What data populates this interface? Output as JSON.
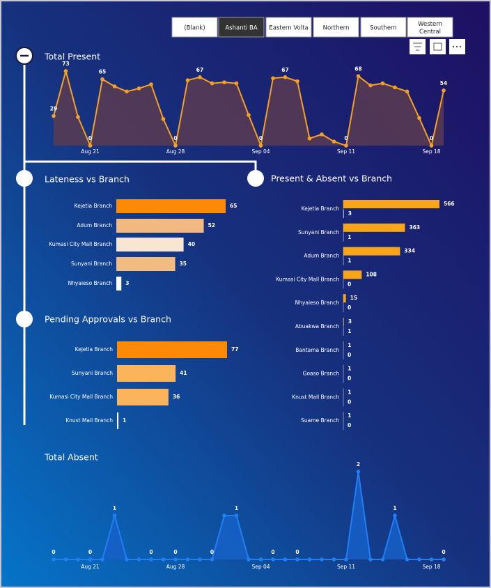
{
  "slicer": {
    "options": [
      "(Blank)",
      "Ashanti BA",
      "Eastern Volta",
      "Northern",
      "Southern",
      "Western Central"
    ],
    "selected": "Ashanti BA"
  },
  "chart_data": [
    {
      "type": "area",
      "title": "Total Present",
      "color": "#f7a11f",
      "fill": "#5b3b52",
      "categories": [
        null,
        null,
        null,
        "Aug 21",
        null,
        null,
        null,
        null,
        null,
        null,
        "Aug 28",
        null,
        null,
        null,
        null,
        null,
        null,
        "Sep 04",
        null,
        null,
        null,
        null,
        null,
        null,
        "Sep 11",
        null,
        null,
        null,
        null,
        null,
        null,
        "Sep 18",
        null
      ],
      "values": [
        29,
        73,
        28,
        0,
        65,
        58,
        53,
        56,
        60,
        26,
        0,
        64,
        67,
        61,
        62,
        61,
        30,
        0,
        66,
        67,
        63,
        7,
        11,
        4,
        0,
        68,
        59,
        61,
        57,
        53,
        27,
        0,
        54
      ],
      "value_labels": [
        "29",
        "73",
        null,
        "0",
        "65",
        null,
        null,
        null,
        null,
        null,
        "0",
        null,
        "67",
        null,
        null,
        null,
        null,
        "0",
        null,
        "67",
        null,
        null,
        null,
        null,
        "0",
        "68",
        null,
        null,
        null,
        null,
        null,
        "0",
        "54"
      ]
    },
    {
      "type": "hbar",
      "title": "Lateness vs Branch",
      "categories": [
        "Kejetia Branch",
        "Adum Branch",
        "Kumasi City Mall Branch",
        "Sunyani Branch",
        "Nhyaieso Branch"
      ],
      "values": [
        65,
        52,
        40,
        35,
        3
      ],
      "colors": [
        "#fb8a08",
        "#f2b983",
        "#f6e6d2",
        "#f2bb7f",
        "#ffffff"
      ]
    },
    {
      "type": "hbar",
      "title": "Pending Approvals vs Branch",
      "categories": [
        "Kejetia Branch",
        "Sunyani Branch",
        "Kumasi City Mall Branch",
        "Knust Mall Branch"
      ],
      "values": [
        77,
        41,
        36,
        1
      ],
      "colors": [
        "#fb8a08",
        "#fbb45c",
        "#fbb45c",
        "#ffffff"
      ]
    },
    {
      "type": "grouped-hbar",
      "title": "Present & Absent vs Branch",
      "categories": [
        "Kejetia Branch",
        "Sunyani Branch",
        "Adum Branch",
        "Kumasi City Mall Branch",
        "Nhyaieso Branch",
        "Abuakwa Branch",
        "Bantama Branch",
        "Goaso Branch",
        "Knust Mall Branch",
        "Suame Branch"
      ],
      "series": [
        {
          "color": "#f9a51a",
          "values": [
            566,
            363,
            334,
            108,
            15,
            3,
            1,
            1,
            1,
            1
          ]
        },
        {
          "color": "#c9d4ff",
          "values": [
            3,
            1,
            1,
            0,
            0,
            1,
            0,
            0,
            0,
            0
          ]
        }
      ]
    },
    {
      "type": "area",
      "title": "Total Absent",
      "color": "#1f7ff5",
      "fill": "#1660c8",
      "categories": [
        null,
        null,
        null,
        "Aug 21",
        null,
        null,
        null,
        null,
        null,
        null,
        "Aug 28",
        null,
        null,
        null,
        null,
        null,
        null,
        "Sep 04",
        null,
        null,
        null,
        null,
        null,
        null,
        "Sep 11",
        null,
        null,
        null,
        null,
        null,
        null,
        "Sep 18",
        null
      ],
      "values": [
        0,
        0,
        0,
        0,
        0,
        1,
        0,
        0,
        0,
        0,
        0,
        0,
        0,
        0,
        1,
        1,
        0,
        0,
        0,
        0,
        0,
        0,
        0,
        0,
        0,
        2,
        0,
        0,
        1,
        0,
        0,
        0,
        0
      ],
      "value_labels": [
        "0",
        null,
        null,
        "0",
        null,
        "1",
        null,
        null,
        "0",
        null,
        "0",
        null,
        null,
        "0",
        null,
        "1",
        null,
        null,
        "0",
        null,
        "0",
        null,
        null,
        null,
        null,
        "2",
        null,
        null,
        "1",
        null,
        null,
        null,
        "0"
      ]
    }
  ]
}
